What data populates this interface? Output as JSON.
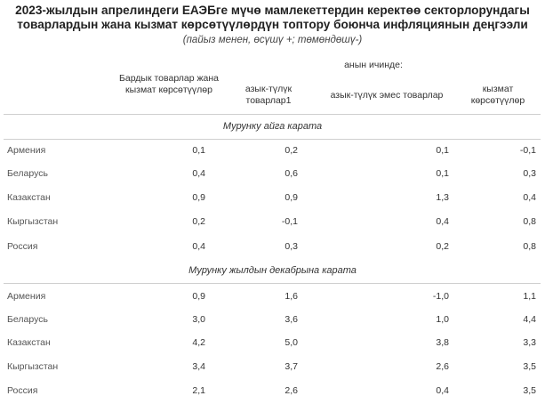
{
  "title": "2023-жылдын апрелиндеги ЕАЭБге мүчө мамлекеттердин керектөө секторлорундагы товарлардын жана кызмат көрсөтүүлөрдүн топтору боюнча инфляциянын деңгээли",
  "subtitle": "(пайыз менен,  өсүшү +; төмөндөшү-)",
  "header": {
    "in_it": "анын ичинде:",
    "col1": "Бардык товарлар жана кызмат көрсөтүүлөр",
    "col2": "азык-түлүк товарлар1",
    "col3": "азык-түлүк эмес товарлар",
    "col4": "кызмат көрсөтүүлөр"
  },
  "sections": [
    {
      "label": "Мурунку айга карата",
      "rows": [
        {
          "country": "Армения",
          "values": [
            "0,1",
            "0,2",
            "0,1",
            "-0,1"
          ]
        },
        {
          "country": "Беларусь",
          "values": [
            "0,4",
            "0,6",
            "0,1",
            "0,3"
          ]
        },
        {
          "country": "Казакстан",
          "values": [
            "0,9",
            "0,9",
            "1,3",
            "0,4"
          ]
        },
        {
          "country": "Кыргызстан",
          "values": [
            "0,2",
            "-0,1",
            "0,4",
            "0,8"
          ]
        },
        {
          "country": "Россия",
          "values": [
            "0,4",
            "0,3",
            "0,2",
            "0,8"
          ]
        }
      ]
    },
    {
      "label": "Мурунку жылдын декабрына карата",
      "rows": [
        {
          "country": "Армения",
          "values": [
            "0,9",
            "1,6",
            "-1,0",
            "1,1"
          ]
        },
        {
          "country": "Беларусь",
          "values": [
            "3,0",
            "3,6",
            "1,0",
            "4,4"
          ]
        },
        {
          "country": "Казакстан",
          "values": [
            "4,2",
            "5,0",
            "3,8",
            "3,3"
          ]
        },
        {
          "country": "Кыргызстан",
          "values": [
            "3,4",
            "3,7",
            "2,6",
            "3,5"
          ]
        },
        {
          "country": "Россия",
          "values": [
            "2,1",
            "2,6",
            "0,4",
            "3,5"
          ]
        }
      ]
    }
  ]
}
